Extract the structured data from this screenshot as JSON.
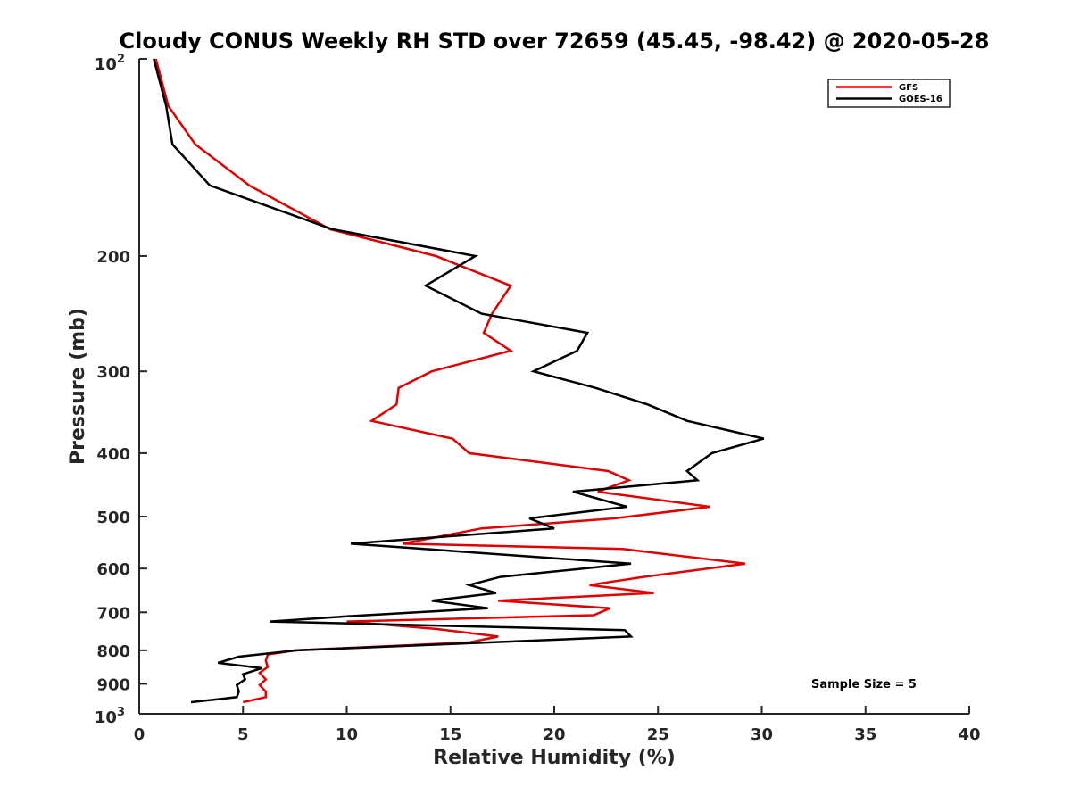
{
  "chart_data": {
    "type": "line",
    "title": "Cloudy CONUS Weekly RH STD over 72659 (45.45, -98.42) @ 2020-05-28",
    "xlabel": "Relative Humidity (%)",
    "ylabel": "Pressure (mb)",
    "xlim": [
      0,
      40
    ],
    "ylim": [
      100,
      1000
    ],
    "y_scale": "log",
    "y_reversed": true,
    "x_ticks": [
      0,
      5,
      10,
      15,
      20,
      25,
      30,
      35,
      40
    ],
    "x_tick_labels": [
      "0",
      "5",
      "10",
      "15",
      "20",
      "25",
      "30",
      "35",
      "40"
    ],
    "y_ticks": [
      200,
      300,
      400,
      500,
      600,
      700,
      800,
      900
    ],
    "y_tick_labels": [
      "200",
      "300",
      "400",
      "500",
      "600",
      "700",
      "800",
      "900"
    ],
    "y_tick_top": {
      "base": "10",
      "exp": "2"
    },
    "y_tick_bottom": {
      "base": "10",
      "exp": "3"
    },
    "grid": false,
    "legend_position": "top-right",
    "annotation": "Sample Size = 5",
    "series": [
      {
        "name": "GFS",
        "color": "#e00000",
        "points": [
          [
            0.8,
            100
          ],
          [
            1.4,
            118
          ],
          [
            2.7,
            135
          ],
          [
            5.3,
            156
          ],
          [
            9.2,
            182
          ],
          [
            14.3,
            200
          ],
          [
            17.9,
            222
          ],
          [
            17.0,
            245
          ],
          [
            16.6,
            262
          ],
          [
            17.9,
            279
          ],
          [
            14.1,
            300
          ],
          [
            12.5,
            318
          ],
          [
            12.4,
            337
          ],
          [
            11.2,
            357
          ],
          [
            15.1,
            380
          ],
          [
            15.9,
            400
          ],
          [
            22.6,
            426
          ],
          [
            23.6,
            440
          ],
          [
            22.1,
            458
          ],
          [
            27.5,
            483
          ],
          [
            22.9,
            503
          ],
          [
            16.5,
            521
          ],
          [
            12.7,
            550
          ],
          [
            23.3,
            560
          ],
          [
            29.2,
            590
          ],
          [
            24.3,
            618
          ],
          [
            21.7,
            636
          ],
          [
            24.8,
            654
          ],
          [
            17.3,
            672
          ],
          [
            22.7,
            690
          ],
          [
            21.9,
            707
          ],
          [
            10.0,
            723
          ],
          [
            14.3,
            742
          ],
          [
            17.3,
            762
          ],
          [
            15.9,
            778
          ],
          [
            7.5,
            800
          ],
          [
            6.2,
            812
          ],
          [
            6.1,
            830
          ],
          [
            6.2,
            848
          ],
          [
            5.8,
            866
          ],
          [
            6.1,
            886
          ],
          [
            5.8,
            904
          ],
          [
            6.1,
            925
          ],
          [
            6.1,
            943
          ],
          [
            5.0,
            960
          ]
        ]
      },
      {
        "name": "GOES-16",
        "color": "#000000",
        "points": [
          [
            0.7,
            100
          ],
          [
            1.3,
            118
          ],
          [
            1.6,
            135
          ],
          [
            3.4,
            156
          ],
          [
            9.3,
            182
          ],
          [
            16.2,
            200
          ],
          [
            13.8,
            222
          ],
          [
            16.5,
            245
          ],
          [
            21.6,
            262
          ],
          [
            21.1,
            279
          ],
          [
            19.0,
            300
          ],
          [
            22.0,
            318
          ],
          [
            24.5,
            337
          ],
          [
            26.4,
            357
          ],
          [
            30.1,
            380
          ],
          [
            27.6,
            400
          ],
          [
            26.4,
            426
          ],
          [
            26.9,
            440
          ],
          [
            20.9,
            458
          ],
          [
            23.5,
            483
          ],
          [
            18.8,
            503
          ],
          [
            20.0,
            521
          ],
          [
            10.2,
            550
          ],
          [
            23.7,
            590
          ],
          [
            17.4,
            618
          ],
          [
            15.9,
            636
          ],
          [
            17.2,
            654
          ],
          [
            14.1,
            672
          ],
          [
            16.8,
            690
          ],
          [
            10.0,
            710
          ],
          [
            6.3,
            723
          ],
          [
            23.4,
            745
          ],
          [
            23.7,
            762
          ],
          [
            7.6,
            800
          ],
          [
            4.8,
            818
          ],
          [
            3.8,
            836
          ],
          [
            5.9,
            852
          ],
          [
            5.0,
            870
          ],
          [
            5.1,
            886
          ],
          [
            4.7,
            904
          ],
          [
            4.8,
            925
          ],
          [
            4.7,
            943
          ],
          [
            2.5,
            960
          ]
        ]
      }
    ]
  }
}
